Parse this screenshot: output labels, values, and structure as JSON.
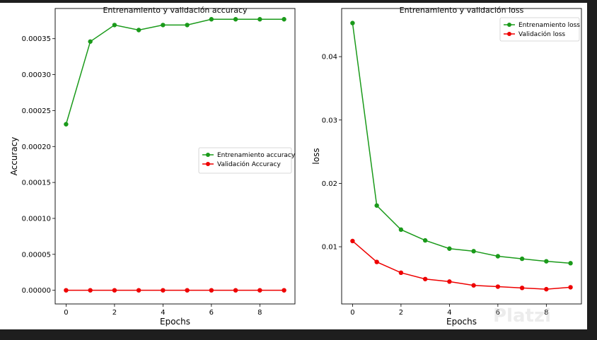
{
  "watermark": "Platzi",
  "colors": {
    "train": "#1a9a1a",
    "val": "#ee0000"
  },
  "chart_data": [
    {
      "type": "line",
      "title": "Entrenamiento y validación accuracy",
      "xlabel": "Epochs",
      "ylabel": "Accuracy",
      "x": [
        0,
        1,
        2,
        3,
        4,
        5,
        6,
        7,
        8,
        9
      ],
      "xlim": [
        -0.45,
        9.45
      ],
      "ylim": [
        -1.9e-05,
        0.000392
      ],
      "xticks": [
        0,
        2,
        4,
        6,
        8
      ],
      "yticks": [
        "0.00000",
        "0.00005",
        "0.00010",
        "0.00015",
        "0.00020",
        "0.00025",
        "0.00030",
        "0.00035"
      ],
      "legend_position": "center-right",
      "series": [
        {
          "name": "Entrenamiento accuracy",
          "color": "#1a9a1a",
          "values": [
            0.000231,
            0.000346,
            0.000369,
            0.000362,
            0.000369,
            0.000369,
            0.000377,
            0.000377,
            0.000377,
            0.000377
          ]
        },
        {
          "name": "Validación Accuracy",
          "color": "#ee0000",
          "values": [
            0,
            0,
            0,
            0,
            0,
            0,
            0,
            0,
            0,
            0
          ]
        }
      ]
    },
    {
      "type": "line",
      "title": "Entrenamiento y validación loss",
      "xlabel": "Epochs",
      "ylabel": "loss",
      "x": [
        0,
        1,
        2,
        3,
        4,
        5,
        6,
        7,
        8,
        9
      ],
      "xlim": [
        -0.45,
        9.45
      ],
      "ylim": [
        0.00097,
        0.0476
      ],
      "xticks": [
        0,
        2,
        4,
        6,
        8
      ],
      "yticks": [
        "0.01",
        "0.02",
        "0.03",
        "0.04"
      ],
      "legend_position": "top-right",
      "series": [
        {
          "name": "Entrenamiento loss",
          "color": "#1a9a1a",
          "values": [
            0.0453,
            0.0165,
            0.0127,
            0.011,
            0.0097,
            0.0093,
            0.0085,
            0.0081,
            0.0077,
            0.0074
          ]
        },
        {
          "name": "Validación loss",
          "color": "#ee0000",
          "values": [
            0.0109,
            0.0076,
            0.0059,
            0.0049,
            0.0045,
            0.0039,
            0.0037,
            0.0035,
            0.0033,
            0.0036
          ]
        }
      ]
    }
  ]
}
